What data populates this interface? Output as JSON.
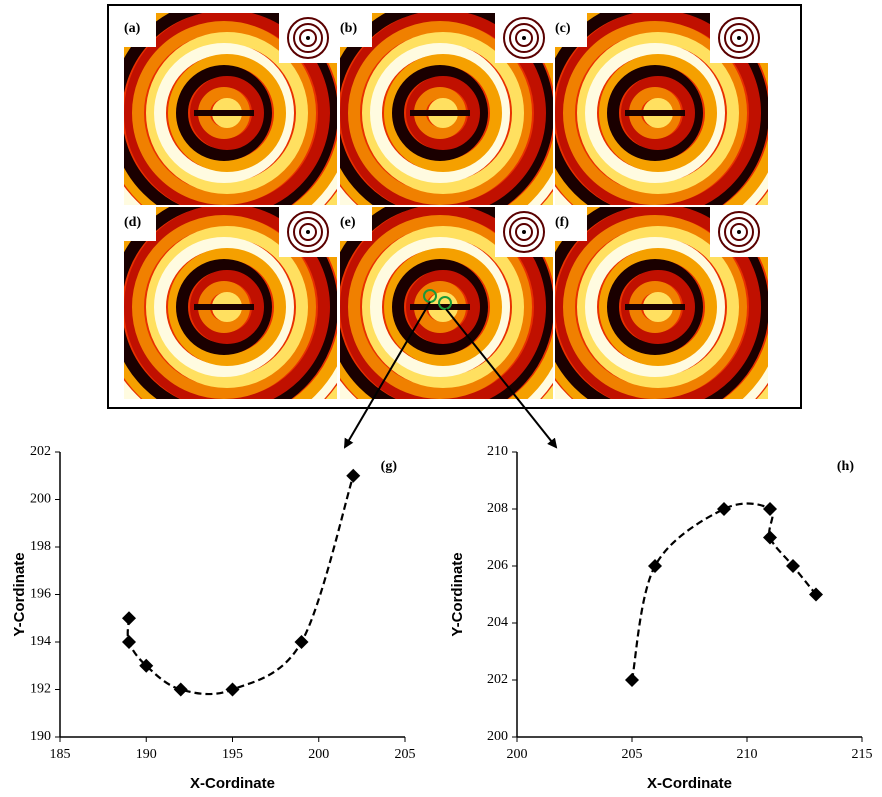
{
  "figure": {
    "panel_labels": [
      "(a)",
      "(b)",
      "(c)",
      "(d)",
      "(e)",
      "(f)"
    ]
  },
  "chart_data": [
    {
      "type": "line",
      "annotation": "(g)",
      "x_label": "X-Cordinate",
      "y_label": "Y-Cordinate",
      "xlim": [
        185,
        205
      ],
      "xticks": [
        185,
        190,
        195,
        200,
        205
      ],
      "ylim": [
        190,
        202
      ],
      "yticks": [
        190,
        192,
        194,
        196,
        198,
        200,
        202
      ],
      "line_style": "dashed",
      "marker": "diamond",
      "series": [
        {
          "color": "#000000",
          "x": [
            189,
            189,
            190,
            192,
            195,
            199,
            202
          ],
          "values": [
            195,
            194,
            193,
            192,
            192,
            194,
            201
          ]
        }
      ]
    },
    {
      "type": "line",
      "annotation": "(h)",
      "x_label": "X-Cordinate",
      "y_label": "Y-Cordinate",
      "xlim": [
        200,
        215
      ],
      "xticks": [
        200,
        205,
        210,
        215
      ],
      "ylim": [
        200,
        210
      ],
      "yticks": [
        200,
        202,
        204,
        206,
        208,
        210
      ],
      "line_style": "dashed",
      "marker": "diamond",
      "series": [
        {
          "color": "#000000",
          "x": [
            205,
            206,
            209,
            211,
            211,
            212,
            213
          ],
          "values": [
            202,
            206,
            208,
            208,
            207,
            206,
            205
          ]
        }
      ]
    }
  ]
}
